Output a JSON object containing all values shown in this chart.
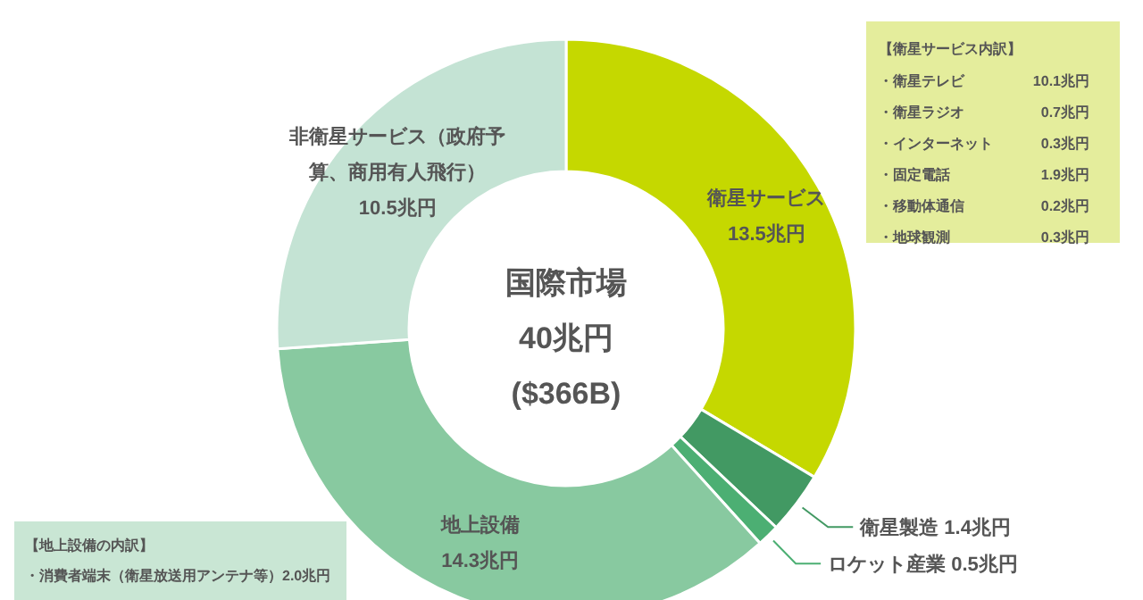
{
  "chart_data": {
    "type": "donut",
    "categories": [
      "衛星サービス",
      "衛星製造",
      "ロケット産業",
      "地上設備",
      "非衛星サービス（政府予算、商用有人飛行）"
    ],
    "values": [
      13.5,
      1.4,
      0.5,
      14.3,
      10.5
    ],
    "value_labels": [
      "13.5兆円",
      "1.4兆円",
      "0.5兆円",
      "14.3兆円",
      "10.5兆円"
    ],
    "colors": [
      "#c5d800",
      "#429963",
      "#4caf73",
      "#88c9a0",
      "#c4e3d4"
    ],
    "annotations": [
      "国際市場",
      "40兆円",
      "($366B)",
      "【衛星サービス内訳】",
      "・衛星テレビ",
      "10.1兆円",
      "・衛星ラジオ",
      "0.7兆円",
      "・インターネット",
      "0.3兆円",
      "・固定電話",
      "1.9兆円",
      "・移動体通信",
      "0.2兆円",
      "・地球観測",
      "0.3兆円",
      "【地上設備の内訳】",
      "・消費者端末（衛星放送用アンテナ等）2.0兆円"
    ]
  }
}
